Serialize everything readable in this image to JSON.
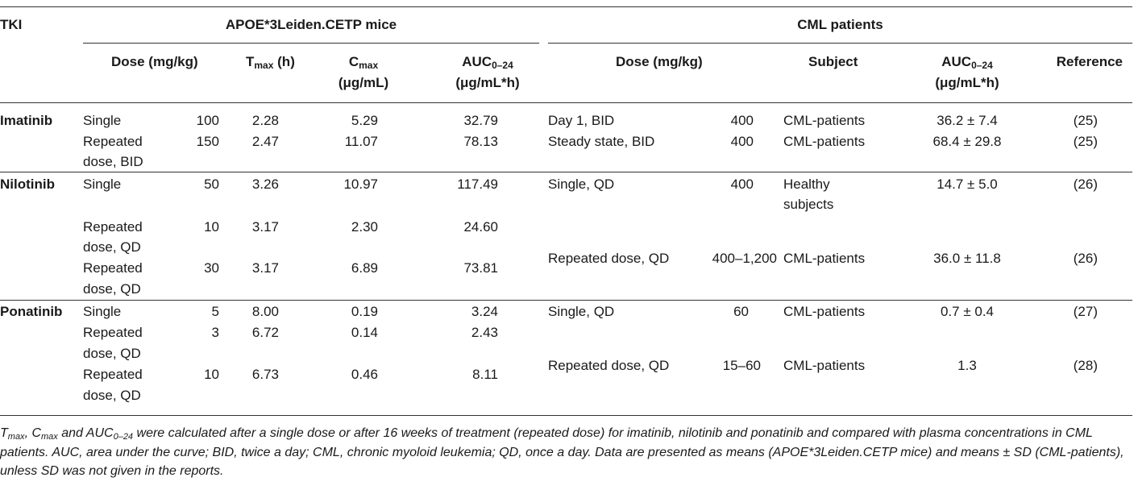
{
  "header": {
    "tki": "TKI",
    "mice_group": "APOE*3Leiden.CETP mice",
    "patients_group": "CML patients",
    "mice_dose": "Dose (mg/kg)",
    "tmax_main": "T",
    "tmax_sub": "max",
    "tmax_unit": " (h)",
    "cmax_main": "C",
    "cmax_sub": "max",
    "cmax_unit": "(μg/mL)",
    "auc_main": "AUC",
    "auc_sub": "0–24",
    "auc_unit": "(μg/mL*h)",
    "pat_dose": "Dose (mg/kg)",
    "subject": "Subject",
    "pat_auc_main": "AUC",
    "pat_auc_sub": "0–24",
    "pat_auc_unit": "(μg/mL*h)",
    "reference": "Reference"
  },
  "rows": {
    "imatinib": {
      "name": "Imatinib",
      "m1": {
        "type": "Single",
        "dose": "100",
        "tmax": "2.28",
        "cmax": "5.29",
        "auc": "32.79"
      },
      "m2": {
        "type1": "Repeated",
        "type2": "dose, BID",
        "dose": "150",
        "tmax": "2.47",
        "cmax": "11.07",
        "auc": "78.13"
      },
      "p1": {
        "dose_text": "Day 1, BID",
        "dose": "400",
        "subject": "CML-patients",
        "auc": "36.2 ± 7.4",
        "ref": "(25)"
      },
      "p2": {
        "dose_text": "Steady state, BID",
        "dose": "400",
        "subject": "CML-patients",
        "auc": "68.4 ± 29.8",
        "ref": "(25)"
      }
    },
    "nilotinib": {
      "name": "Nilotinib",
      "m1": {
        "type": "Single",
        "dose": "50",
        "tmax": "3.26",
        "cmax": "10.97",
        "auc": "117.49"
      },
      "m2": {
        "type1": "Repeated",
        "type2": "dose, QD",
        "dose": "10",
        "tmax": "3.17",
        "cmax": "2.30",
        "auc": "24.60"
      },
      "m3": {
        "type1": "Repeated",
        "type2": "dose, QD",
        "dose": "30",
        "tmax": "3.17",
        "cmax": "6.89",
        "auc": "73.81"
      },
      "p1": {
        "dose_text": "Single, QD",
        "dose": "400",
        "subject1": "Healthy",
        "subject2": "subjects",
        "auc": "14.7 ± 5.0",
        "ref": "(26)"
      },
      "p2": {
        "dose_text": "Repeated dose, QD",
        "dose": "400–1,200",
        "subject": "CML-patients",
        "auc": "36.0 ± 11.8",
        "ref": "(26)"
      }
    },
    "ponatinib": {
      "name": "Ponatinib",
      "m1": {
        "type": "Single",
        "dose": "5",
        "tmax": "8.00",
        "cmax": "0.19",
        "auc": "3.24"
      },
      "m2": {
        "type1": "Repeated",
        "type2": "dose, QD",
        "dose": "3",
        "tmax": "6.72",
        "cmax": "0.14",
        "auc": "2.43"
      },
      "m3": {
        "type1": "Repeated",
        "type2": "dose, QD",
        "dose": "10",
        "tmax": "6.73",
        "cmax": "0.46",
        "auc": "8.11"
      },
      "p1": {
        "dose_text": "Single, QD",
        "dose": "60",
        "subject": "CML-patients",
        "auc": "0.7 ± 0.4",
        "ref": "(27)"
      },
      "p2": {
        "dose_text": "Repeated dose, QD",
        "dose": "15–60",
        "subject": "CML-patients",
        "auc": "1.3",
        "ref": "(28)"
      }
    }
  },
  "caption": {
    "t": "T",
    "t_sub": "max",
    "sep1": ", C",
    "c_sub": "max",
    "sep2": " and AUC",
    "auc_sub": "0–24",
    "text": " were calculated after a single dose or after 16 weeks of treatment (repeated dose) for imatinib, nilotinib and ponatinib and compared with plasma concentrations in CML patients. AUC, area under the curve; BID, twice a day; CML, chronic myoloid leukemia; QD, once a day. Data are presented as means (APOE*3Leiden.CETP mice) and means ± SD (CML-patients), unless SD was not given in the reports."
  }
}
